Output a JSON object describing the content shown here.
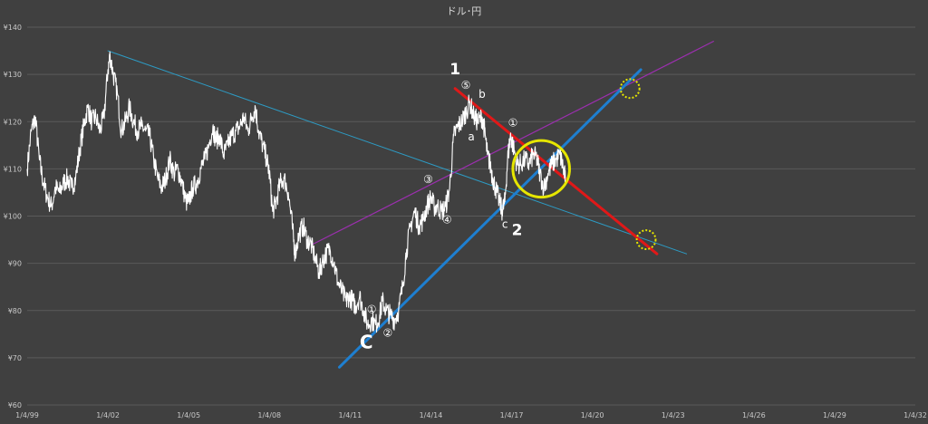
{
  "chart_data": {
    "type": "line",
    "title": "ドル･円",
    "xlabel": "",
    "ylabel": "",
    "ylim": [
      60,
      140
    ],
    "xlim": [
      1999.0,
      2032.0
    ],
    "grid": true,
    "y_ticks": [
      {
        "value": 60,
        "label": "¥60"
      },
      {
        "value": 70,
        "label": "¥70"
      },
      {
        "value": 80,
        "label": "¥80"
      },
      {
        "value": 90,
        "label": "¥90"
      },
      {
        "value": 100,
        "label": "¥100"
      },
      {
        "value": 110,
        "label": "¥110"
      },
      {
        "value": 120,
        "label": "¥120"
      },
      {
        "value": 130,
        "label": "¥130"
      },
      {
        "value": 140,
        "label": "¥140"
      }
    ],
    "x_ticks": [
      {
        "value": 1999,
        "label": "1/4/99"
      },
      {
        "value": 2002,
        "label": "1/4/02"
      },
      {
        "value": 2005,
        "label": "1/4/05"
      },
      {
        "value": 2008,
        "label": "1/4/08"
      },
      {
        "value": 2011,
        "label": "1/4/11"
      },
      {
        "value": 2014,
        "label": "1/4/14"
      },
      {
        "value": 2017,
        "label": "1/4/17"
      },
      {
        "value": 2020,
        "label": "1/4/20"
      },
      {
        "value": 2023,
        "label": "1/4/23"
      },
      {
        "value": 2026,
        "label": "1/4/26"
      },
      {
        "value": 2029,
        "label": "1/4/29"
      },
      {
        "value": 2032,
        "label": "1/4/32"
      }
    ],
    "series": [
      {
        "name": "",
        "color": "#ffffff",
        "points": [
          [
            1999.0,
            110
          ],
          [
            1999.15,
            118
          ],
          [
            1999.3,
            121
          ],
          [
            1999.45,
            112
          ],
          [
            1999.6,
            107
          ],
          [
            1999.75,
            104
          ],
          [
            1999.9,
            102
          ],
          [
            2000.05,
            106
          ],
          [
            2000.2,
            105
          ],
          [
            2000.35,
            107
          ],
          [
            2000.5,
            108
          ],
          [
            2000.65,
            106
          ],
          [
            2000.8,
            108
          ],
          [
            2000.95,
            114
          ],
          [
            2001.1,
            119
          ],
          [
            2001.25,
            123
          ],
          [
            2001.4,
            120
          ],
          [
            2001.55,
            121
          ],
          [
            2001.7,
            118
          ],
          [
            2001.85,
            121
          ],
          [
            2002.0,
            131
          ],
          [
            2002.08,
            134
          ],
          [
            2002.2,
            130
          ],
          [
            2002.35,
            126
          ],
          [
            2002.5,
            118
          ],
          [
            2002.65,
            120
          ],
          [
            2002.8,
            123
          ],
          [
            2002.95,
            120
          ],
          [
            2003.1,
            118
          ],
          [
            2003.25,
            119
          ],
          [
            2003.4,
            118
          ],
          [
            2003.55,
            117
          ],
          [
            2003.7,
            112
          ],
          [
            2003.85,
            108
          ],
          [
            2004.0,
            106
          ],
          [
            2004.15,
            108
          ],
          [
            2004.3,
            112
          ],
          [
            2004.45,
            109
          ],
          [
            2004.6,
            110
          ],
          [
            2004.75,
            107
          ],
          [
            2004.9,
            103
          ],
          [
            2005.0,
            103
          ],
          [
            2005.15,
            106
          ],
          [
            2005.3,
            107
          ],
          [
            2005.45,
            110
          ],
          [
            2005.6,
            112
          ],
          [
            2005.75,
            115
          ],
          [
            2005.9,
            119
          ],
          [
            2006.0,
            116
          ],
          [
            2006.15,
            117
          ],
          [
            2006.3,
            113
          ],
          [
            2006.45,
            115
          ],
          [
            2006.6,
            117
          ],
          [
            2006.75,
            118
          ],
          [
            2006.9,
            119
          ],
          [
            2007.05,
            121
          ],
          [
            2007.2,
            118
          ],
          [
            2007.35,
            121
          ],
          [
            2007.48,
            123
          ],
          [
            2007.6,
            118
          ],
          [
            2007.75,
            115
          ],
          [
            2007.9,
            112
          ],
          [
            2008.0,
            109
          ],
          [
            2008.12,
            101
          ],
          [
            2008.25,
            103
          ],
          [
            2008.4,
            107
          ],
          [
            2008.55,
            108
          ],
          [
            2008.7,
            105
          ],
          [
            2008.85,
            98
          ],
          [
            2008.95,
            92
          ],
          [
            2009.1,
            96
          ],
          [
            2009.25,
            98
          ],
          [
            2009.4,
            95
          ],
          [
            2009.55,
            94
          ],
          [
            2009.7,
            91
          ],
          [
            2009.85,
            88
          ],
          [
            2009.95,
            90
          ],
          [
            2010.1,
            92
          ],
          [
            2010.25,
            93
          ],
          [
            2010.4,
            90
          ],
          [
            2010.55,
            86
          ],
          [
            2010.7,
            84
          ],
          [
            2010.85,
            82
          ],
          [
            2010.95,
            83
          ],
          [
            2011.1,
            82
          ],
          [
            2011.2,
            81
          ],
          [
            2011.35,
            83
          ],
          [
            2011.5,
            80
          ],
          [
            2011.65,
            77
          ],
          [
            2011.8,
            78
          ],
          [
            2011.95,
            77
          ],
          [
            2012.1,
            79
          ],
          [
            2012.2,
            82
          ],
          [
            2012.35,
            80
          ],
          [
            2012.5,
            79
          ],
          [
            2012.65,
            78
          ],
          [
            2012.8,
            80
          ],
          [
            2012.95,
            85
          ],
          [
            2013.1,
            93
          ],
          [
            2013.25,
            98
          ],
          [
            2013.4,
            101
          ],
          [
            2013.55,
            98
          ],
          [
            2013.7,
            99
          ],
          [
            2013.85,
            102
          ],
          [
            2014.0,
            104
          ],
          [
            2014.12,
            102
          ],
          [
            2014.25,
            102
          ],
          [
            2014.4,
            101
          ],
          [
            2014.55,
            102
          ],
          [
            2014.7,
            106
          ],
          [
            2014.85,
            117
          ],
          [
            2015.0,
            119
          ],
          [
            2015.15,
            120
          ],
          [
            2015.3,
            122
          ],
          [
            2015.45,
            124
          ],
          [
            2015.6,
            121
          ],
          [
            2015.75,
            120
          ],
          [
            2015.9,
            121
          ],
          [
            2016.0,
            118
          ],
          [
            2016.1,
            113
          ],
          [
            2016.2,
            111
          ],
          [
            2016.3,
            108
          ],
          [
            2016.4,
            106
          ],
          [
            2016.55,
            103
          ],
          [
            2016.65,
            101
          ],
          [
            2016.75,
            103
          ],
          [
            2016.85,
            112
          ],
          [
            2016.95,
            117
          ],
          [
            2017.05,
            115
          ],
          [
            2017.2,
            111
          ],
          [
            2017.35,
            111
          ],
          [
            2017.5,
            112
          ],
          [
            2017.65,
            111
          ],
          [
            2017.8,
            113
          ],
          [
            2017.95,
            112
          ],
          [
            2018.05,
            109
          ],
          [
            2018.2,
            106
          ],
          [
            2018.35,
            109
          ],
          [
            2018.5,
            111
          ],
          [
            2018.65,
            112
          ],
          [
            2018.8,
            113
          ],
          [
            2018.92,
            110
          ],
          [
            2019.0,
            108
          ]
        ]
      }
    ],
    "trendlines": [
      {
        "name": "",
        "color": "#2d9bc4",
        "width": 1,
        "from": [
          2002.0,
          135
        ],
        "to": [
          2023.5,
          92
        ]
      },
      {
        "name": "",
        "color": "#9b2fae",
        "width": 1.2,
        "from": [
          2009.6,
          94
        ],
        "to": [
          2024.5,
          137
        ]
      },
      {
        "name": "",
        "color": "#1e7fd0",
        "width": 3,
        "from": [
          2010.6,
          68
        ],
        "to": [
          2021.8,
          131
        ]
      },
      {
        "name": "",
        "color": "#e01818",
        "width": 3,
        "from": [
          2014.9,
          127
        ],
        "to": [
          2022.4,
          92
        ]
      }
    ],
    "highlights": [
      {
        "type": "circle",
        "color": "#e6e600",
        "center": [
          2018.1,
          110
        ],
        "radius_y": 6,
        "dashed": false
      },
      {
        "type": "circle",
        "color": "#e6e600",
        "center": [
          2021.4,
          127
        ],
        "radius_y": 2,
        "dashed": true
      },
      {
        "type": "circle",
        "color": "#e6e600",
        "center": [
          2022.0,
          95
        ],
        "radius_y": 2,
        "dashed": true
      }
    ],
    "annotations": [
      {
        "text": "1",
        "x": 2014.9,
        "y": 130,
        "size": "large"
      },
      {
        "text": "⑤",
        "x": 2015.3,
        "y": 127,
        "size": "small"
      },
      {
        "text": "b",
        "x": 2015.9,
        "y": 125,
        "size": "small"
      },
      {
        "text": "a",
        "x": 2015.5,
        "y": 116,
        "size": "small"
      },
      {
        "text": "①",
        "x": 2017.05,
        "y": 119,
        "size": "small"
      },
      {
        "text": "③",
        "x": 2013.9,
        "y": 107,
        "size": "small"
      },
      {
        "text": "④",
        "x": 2014.6,
        "y": 98.5,
        "size": "small"
      },
      {
        "text": "c",
        "x": 2016.75,
        "y": 97.5,
        "size": "small"
      },
      {
        "text": "2",
        "x": 2017.2,
        "y": 96,
        "size": "large"
      },
      {
        "text": "①",
        "x": 2011.8,
        "y": 79.5,
        "size": "small"
      },
      {
        "text": "②",
        "x": 2012.4,
        "y": 74.5,
        "size": "small"
      },
      {
        "text": "C",
        "x": 2011.6,
        "y": 72,
        "size": "xlarge"
      }
    ]
  }
}
